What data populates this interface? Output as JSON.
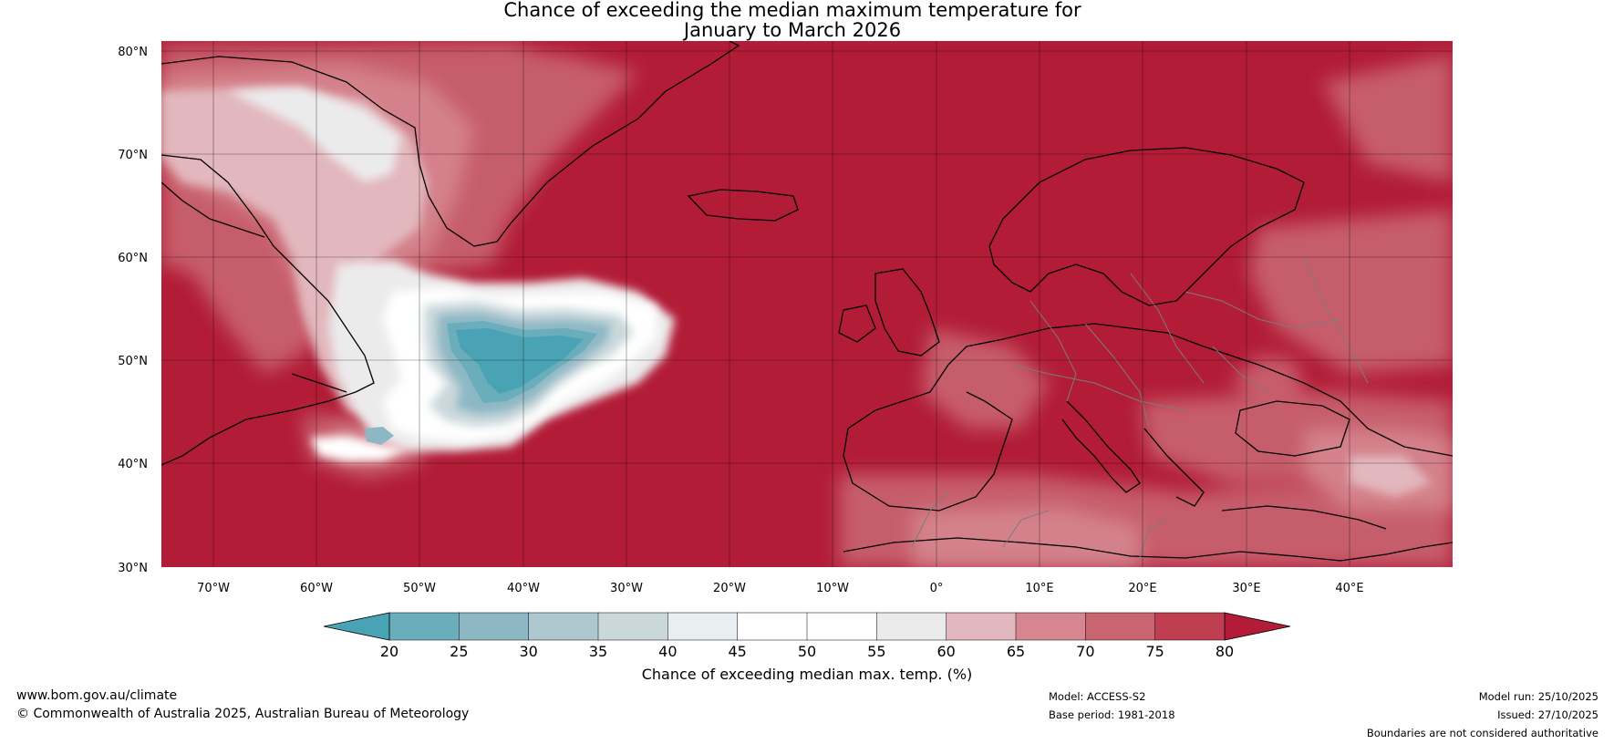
{
  "title": {
    "line1": "Chance of exceeding the median maximum temperature for",
    "line2": "January to March 2026"
  },
  "map": {
    "lat_labels": [
      "80°N",
      "70°N",
      "60°N",
      "50°N",
      "40°N",
      "30°N"
    ],
    "lat_values": [
      80,
      70,
      60,
      50,
      40,
      30
    ],
    "lon_labels": [
      "70°W",
      "60°W",
      "50°W",
      "40°W",
      "30°W",
      "20°W",
      "10°W",
      "0°",
      "10°E",
      "20°E",
      "30°E",
      "40°E"
    ],
    "lon_values": [
      -70,
      -60,
      -50,
      -40,
      -30,
      -20,
      -10,
      0,
      10,
      20,
      30,
      40
    ],
    "extent": {
      "lon_min": -75,
      "lon_max": 50,
      "lat_min": 30,
      "lat_max": 81
    },
    "dominant_category": "80+",
    "cool_anomaly_region": "North Atlantic south of Greenland (approx. 40°N–58°N, 25°W–55°W)"
  },
  "colorbar": {
    "ticks": [
      "20",
      "25",
      "30",
      "35",
      "40",
      "45",
      "50",
      "55",
      "60",
      "65",
      "70",
      "75",
      "80"
    ],
    "tick_values": [
      20,
      25,
      30,
      35,
      40,
      45,
      50,
      55,
      60,
      65,
      70,
      75,
      80
    ],
    "colors": [
      "#4aa3b5",
      "#6aadbb",
      "#8db7c4",
      "#adc7cf",
      "#cbd8db",
      "#e7eff0",
      "#ffffff",
      "#ffffff",
      "#ecebec",
      "#e2b7bd",
      "#d6868f",
      "#c96571",
      "#bf3f50"
    ],
    "under_color": "#4aa3b5",
    "over_color": "#b21c37",
    "label": "Chance of exceeding median max. temp. (%)"
  },
  "footer": {
    "website": "www.bom.gov.au/climate",
    "copyright": "© Commonwealth of Australia 2025, Australian Bureau of Meteorology",
    "model": "Model: ACCESS-S2",
    "base_period": "Base period: 1981-2018",
    "model_run": "Model run: 25/10/2025",
    "issued": "Issued: 27/10/2025",
    "disclaimer": "Boundaries are not considered authoritative"
  }
}
